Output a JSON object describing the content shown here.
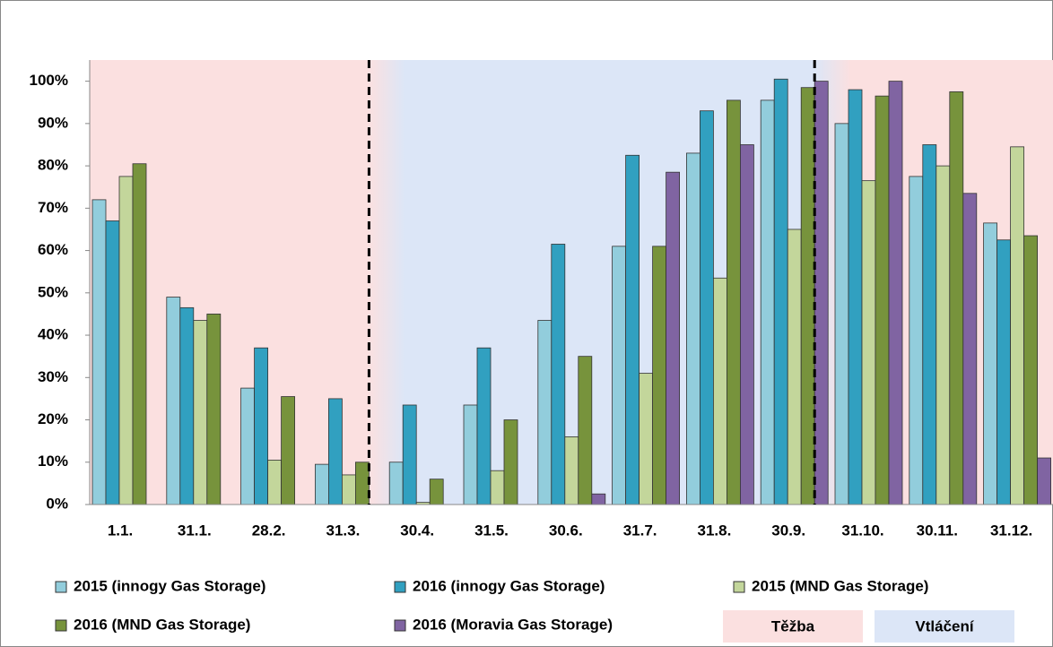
{
  "chart_data": {
    "type": "bar",
    "categories": [
      "1.1.",
      "31.1.",
      "28.2.",
      "31.3.",
      "30.4.",
      "31.5.",
      "30.6.",
      "31.7.",
      "31.8.",
      "30.9.",
      "31.10.",
      "30.11.",
      "31.12."
    ],
    "series": [
      {
        "name": "2015 (innogy Gas Storage)",
        "color": "#92cddc",
        "values": [
          72,
          49,
          27.5,
          9.5,
          10,
          23.5,
          43.5,
          61,
          83,
          95.5,
          90,
          77.5,
          66.5
        ]
      },
      {
        "name": "2016 (innogy Gas Storage)",
        "color": "#31a0c0",
        "values": [
          67,
          46.5,
          37,
          25,
          23.5,
          37,
          61.5,
          82.5,
          93,
          100.5,
          98,
          85,
          62.5
        ]
      },
      {
        "name": "2015 (MND Gas Storage)",
        "color": "#c3d69b",
        "values": [
          77.5,
          43.5,
          10.5,
          7,
          0.5,
          8,
          16,
          31,
          53.5,
          65,
          76.5,
          80,
          84.5
        ]
      },
      {
        "name": "2016 (MND Gas Storage)",
        "color": "#77933c",
        "values": [
          80.5,
          45,
          25.5,
          10,
          6,
          20,
          35,
          61,
          95.5,
          98.5,
          96.5,
          97.5,
          63.5
        ]
      },
      {
        "name": "2016 (Moravia Gas Storage)",
        "color": "#8064a2",
        "values": [
          null,
          null,
          null,
          null,
          null,
          null,
          2.5,
          78.5,
          85,
          100,
          100,
          73.5,
          11
        ]
      }
    ],
    "regions": [
      {
        "name": "Těžba",
        "color": "#fbe0e0"
      },
      {
        "name": "Vtláčení",
        "color": "#dce6f7"
      }
    ],
    "ylim": [
      0,
      105
    ],
    "yticks": [
      {
        "value": 0,
        "label": "0%"
      },
      {
        "value": 10,
        "label": "10%"
      },
      {
        "value": 20,
        "label": "20%"
      },
      {
        "value": 30,
        "label": "30%"
      },
      {
        "value": 40,
        "label": "40%"
      },
      {
        "value": 50,
        "label": "50%"
      },
      {
        "value": 60,
        "label": "60%"
      },
      {
        "value": 70,
        "label": "70%"
      },
      {
        "value": 80,
        "label": "80%"
      },
      {
        "value": 90,
        "label": "90%"
      },
      {
        "value": 100,
        "label": "100%"
      }
    ],
    "grid": false
  }
}
